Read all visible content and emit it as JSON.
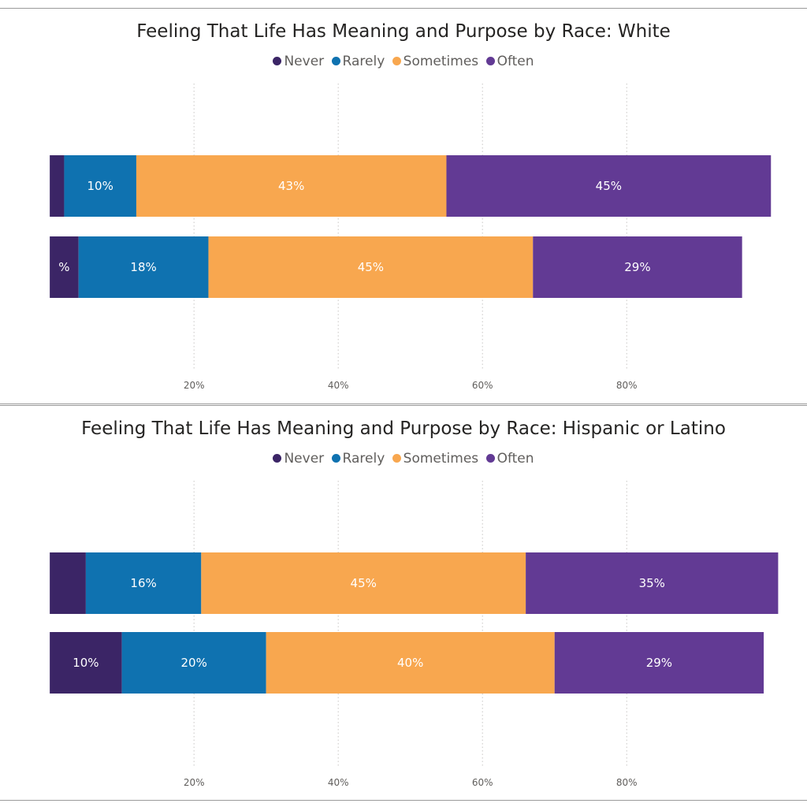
{
  "legend": {
    "items": [
      {
        "label": "Never",
        "color": "#3b2566"
      },
      {
        "label": "Rarely",
        "color": "#0f72b0"
      },
      {
        "label": "Sometimes",
        "color": "#f8a74f"
      },
      {
        "label": "Often",
        "color": "#623a94"
      }
    ]
  },
  "chart_data": [
    {
      "type": "bar",
      "orientation": "horizontal",
      "stacked": true,
      "title": "Feeling That Life Has Meaning and Purpose by Race: White",
      "xlabel": "",
      "ylabel": "",
      "xlim": [
        -6.9,
        105
      ],
      "xticks": [
        20,
        40,
        60,
        80
      ],
      "xtick_labels": [
        "20%",
        "40%",
        "60%",
        "80%"
      ],
      "grid": true,
      "legend_position": "top",
      "series": [
        {
          "name": "Never",
          "values": [
            2,
            4
          ],
          "labels": [
            "",
            "%"
          ]
        },
        {
          "name": "Rarely",
          "values": [
            10,
            18
          ],
          "labels": [
            "10%",
            "18%"
          ]
        },
        {
          "name": "Sometimes",
          "values": [
            43,
            45
          ],
          "labels": [
            "43%",
            "45%"
          ]
        },
        {
          "name": "Often",
          "values": [
            45,
            29
          ],
          "labels": [
            "45%",
            "29%"
          ]
        }
      ]
    },
    {
      "type": "bar",
      "orientation": "horizontal",
      "stacked": true,
      "title": "Feeling That Life Has Meaning and Purpose by Race: Hispanic or Latino",
      "xlabel": "",
      "ylabel": "",
      "xlim": [
        -6.9,
        105
      ],
      "xticks": [
        20,
        40,
        60,
        80
      ],
      "xtick_labels": [
        "20%",
        "40%",
        "60%",
        "80%"
      ],
      "grid": true,
      "legend_position": "top",
      "series": [
        {
          "name": "Never",
          "values": [
            5,
            10
          ],
          "labels": [
            "",
            "10%"
          ]
        },
        {
          "name": "Rarely",
          "values": [
            16,
            20
          ],
          "labels": [
            "16%",
            "20%"
          ]
        },
        {
          "name": "Sometimes",
          "values": [
            45,
            40
          ],
          "labels": [
            "45%",
            "40%"
          ]
        },
        {
          "name": "Often",
          "values": [
            35,
            29
          ],
          "labels": [
            "35%",
            "29%"
          ]
        }
      ]
    }
  ]
}
